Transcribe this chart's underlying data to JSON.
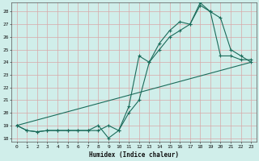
{
  "title": "",
  "xlabel": "Humidex (Indice chaleur)",
  "bg_color": "#d0eeea",
  "grid_color": "#d8a8a8",
  "line_color": "#1a6b5a",
  "xlim": [
    -0.5,
    23.5
  ],
  "ylim": [
    17.7,
    28.7
  ],
  "yticks": [
    18,
    19,
    20,
    21,
    22,
    23,
    24,
    25,
    26,
    27,
    28
  ],
  "xticks": [
    0,
    1,
    2,
    3,
    4,
    5,
    6,
    7,
    8,
    9,
    10,
    11,
    12,
    13,
    14,
    15,
    16,
    17,
    18,
    19,
    20,
    21,
    22,
    23
  ],
  "line1_x": [
    0,
    1,
    2,
    3,
    4,
    5,
    6,
    7,
    8,
    9,
    10,
    11,
    12,
    13,
    14,
    15,
    16,
    17,
    18,
    19,
    20,
    21,
    22,
    23
  ],
  "line1_y": [
    19.0,
    18.6,
    18.5,
    18.6,
    18.6,
    18.6,
    18.6,
    18.6,
    18.6,
    19.0,
    18.6,
    20.0,
    21.0,
    24.0,
    25.0,
    26.0,
    26.5,
    27.0,
    28.5,
    28.0,
    27.5,
    25.0,
    24.5,
    24.0
  ],
  "line2_x": [
    0,
    1,
    2,
    3,
    4,
    5,
    6,
    7,
    8,
    9,
    10,
    11,
    12,
    13,
    14,
    15,
    16,
    17,
    18,
    19,
    20,
    21,
    22,
    23
  ],
  "line2_y": [
    19.0,
    18.6,
    18.5,
    18.6,
    18.6,
    18.6,
    18.6,
    18.6,
    19.0,
    18.0,
    18.6,
    20.5,
    24.5,
    24.0,
    25.5,
    26.5,
    27.2,
    27.0,
    28.7,
    28.0,
    24.5,
    24.5,
    24.2,
    24.2
  ],
  "line3_x": [
    0,
    23
  ],
  "line3_y": [
    19.0,
    24.0
  ]
}
